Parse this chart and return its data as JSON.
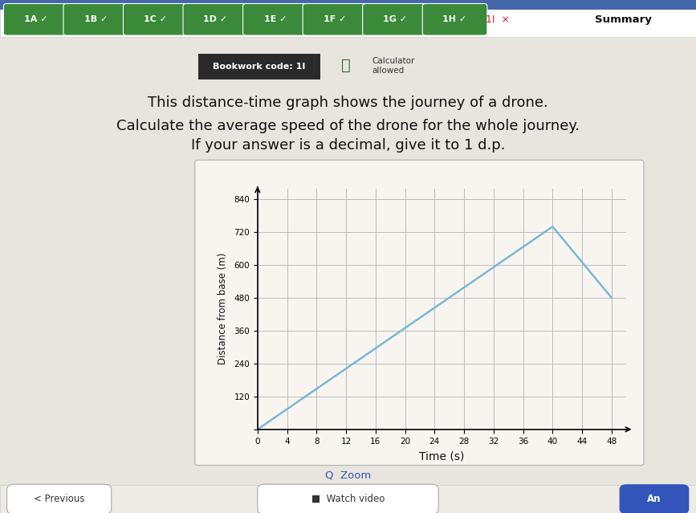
{
  "title_line1": "This distance-time graph shows the journey of a drone.",
  "title_line2": "Calculate the average speed of the drone for the whole journey.",
  "title_line3": "If your answer is a decimal, give it to 1 d.p.",
  "bookwork_code": "Bookwork code: 1I",
  "calculator_text": "Calculator\nallowed",
  "xlabel": "Time (s)",
  "ylabel": "Distance from base (m)",
  "x_data": [
    0,
    40,
    48
  ],
  "y_data": [
    0,
    740,
    480
  ],
  "x_ticks": [
    0,
    4,
    8,
    12,
    16,
    20,
    24,
    28,
    32,
    36,
    40,
    44,
    48
  ],
  "y_ticks": [
    0,
    120,
    240,
    360,
    480,
    600,
    720,
    840
  ],
  "xlim": [
    0,
    50
  ],
  "ylim": [
    0,
    880
  ],
  "line_color": "#7ab8d4",
  "line_width": 1.8,
  "grid_color": "#bbbbbb",
  "plot_bg_color": "#f7f4f0",
  "fig_bg_color": "#e8e4de",
  "content_bg_color": "#f0ece6",
  "nav_bg_color": "#ffffff",
  "nav_green_color": "#3a8a3a",
  "bookwork_bg": "#2a2a2a",
  "graph_border_color": "#bbbbbb",
  "graph_border_bg": "#f7f4f0",
  "zoom_text": "Q  Zoom",
  "previous_text": "< Previous",
  "watch_video_text": "■  Watch video",
  "answer_text": "An"
}
